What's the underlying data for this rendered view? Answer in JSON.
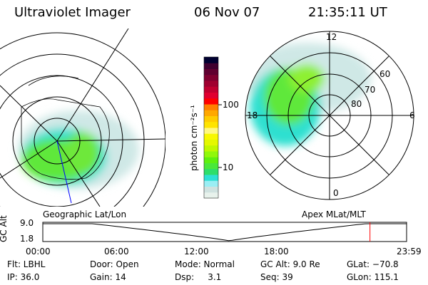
{
  "header": {
    "instrument": "Ultraviolet Imager",
    "date": "06 Nov 07",
    "time": "21:35:11 UT"
  },
  "colorbar": {
    "label": "photon cm⁻²s⁻¹",
    "ticks": [
      "100",
      "10"
    ],
    "colors": [
      "#e8f2ec",
      "#d0e2e0",
      "#9aeef4",
      "#2de0d4",
      "#2ede6a",
      "#4ae83a",
      "#5ef00e",
      "#90f80a",
      "#c0f800",
      "#e4f800",
      "#f8f800",
      "#fff880",
      "#ffe400",
      "#ffcc00",
      "#ffa800",
      "#ff8000",
      "#ff0000",
      "#e00030",
      "#c00030",
      "#a00030",
      "#800030",
      "#600030",
      "#400030",
      "#000030"
    ]
  },
  "left_map": {
    "label": "Geographic Lat/Lon"
  },
  "right_map": {
    "label": "Apex MLat/MLT",
    "mlt_labels": [
      "12",
      "6",
      "0",
      "18"
    ],
    "lat_labels": [
      "60",
      "70",
      "80"
    ]
  },
  "altitude_plot": {
    "ylabel": "GC Alt",
    "yticks": [
      "9.0",
      "1.8"
    ],
    "xticks": [
      "00:00",
      "06:00",
      "12:00",
      "18:00",
      "23:59"
    ],
    "current_time_marker": "21:35",
    "marker_color": "#ff0000"
  },
  "status": {
    "row1": [
      "Flt: LBHL",
      "Door: Open",
      "Mode: Normal",
      "GC Alt: 9.0 Re",
      "GLat: −70.8"
    ],
    "row2": [
      "IP: 36.0",
      "Gain: 14",
      "Dsp:     3.1",
      "Seq: 39",
      "GLon: 115.1"
    ]
  }
}
